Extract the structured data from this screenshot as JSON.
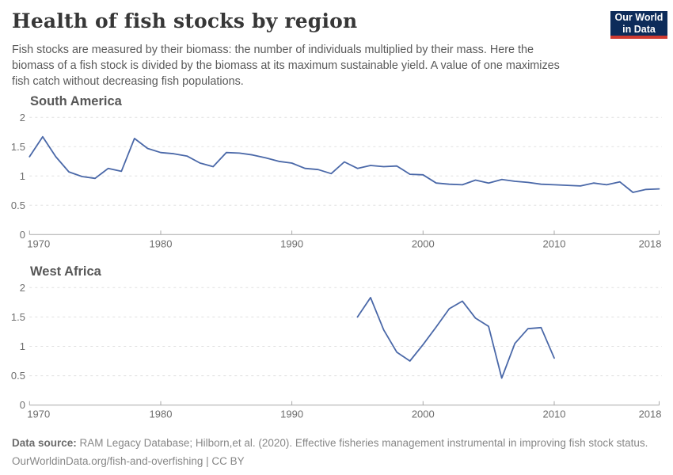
{
  "page_title": "Health of fish stocks by region",
  "subtitle": {
    "lines": [
      "Fish stocks are measured by their biomass: the number of individuals multiplied by their mass. Here the",
      "biomass of a fish stock is divided by the biomass at its maximum sustainable yield. A value of one maximizes",
      "fish catch without decreasing fish populations."
    ]
  },
  "logo": {
    "line1": "Our World",
    "line2": "in Data",
    "bg_color": "#0d2c5a",
    "bar_color": "#d03a30"
  },
  "colors": {
    "line": "#4a68a8",
    "gridline": "#e0e0e0",
    "axis": "#a9a9a9",
    "tick_label": "#6e6e6e"
  },
  "chart_data": [
    {
      "type": "line",
      "title": "South America",
      "xlabel": "",
      "ylabel": "",
      "xlim": [
        1970,
        2018
      ],
      "ylim": [
        0,
        2
      ],
      "xticks": [
        1970,
        1980,
        1990,
        2000,
        2010,
        2018
      ],
      "yticks": [
        0,
        0.5,
        1,
        1.5,
        2
      ],
      "grid": "horizontal-dashed",
      "legend": "none",
      "x": [
        1970,
        1971,
        1972,
        1973,
        1974,
        1975,
        1976,
        1977,
        1978,
        1979,
        1980,
        1981,
        1982,
        1983,
        1984,
        1985,
        1986,
        1987,
        1988,
        1989,
        1990,
        1991,
        1992,
        1993,
        1994,
        1995,
        1996,
        1997,
        1998,
        1999,
        2000,
        2001,
        2002,
        2003,
        2004,
        2005,
        2006,
        2007,
        2008,
        2009,
        2010,
        2011,
        2012,
        2013,
        2014,
        2015,
        2016,
        2017,
        2018
      ],
      "y": [
        1.33,
        1.67,
        1.33,
        1.07,
        0.99,
        0.96,
        1.13,
        1.08,
        1.64,
        1.47,
        1.4,
        1.38,
        1.34,
        1.22,
        1.16,
        1.4,
        1.39,
        1.36,
        1.31,
        1.25,
        1.22,
        1.13,
        1.11,
        1.04,
        1.24,
        1.13,
        1.18,
        1.16,
        1.17,
        1.03,
        1.02,
        0.88,
        0.86,
        0.85,
        0.93,
        0.88,
        0.94,
        0.91,
        0.89,
        0.86,
        0.85,
        0.84,
        0.83,
        0.88,
        0.85,
        0.9,
        0.72,
        0.77,
        0.78
      ]
    },
    {
      "type": "line",
      "title": "West Africa",
      "xlabel": "",
      "ylabel": "",
      "xlim": [
        1970,
        2018
      ],
      "ylim": [
        0,
        2
      ],
      "xticks": [
        1970,
        1980,
        1990,
        2000,
        2010,
        2018
      ],
      "yticks": [
        0,
        0.5,
        1,
        1.5,
        2
      ],
      "grid": "horizontal-dashed",
      "legend": "none",
      "x": [
        1995,
        1996,
        1997,
        1998,
        1999,
        2000,
        2001,
        2002,
        2003,
        2004,
        2005,
        2006,
        2007,
        2008,
        2009,
        2010
      ],
      "y": [
        1.5,
        1.83,
        1.28,
        0.9,
        0.75,
        1.03,
        1.33,
        1.64,
        1.77,
        1.48,
        1.34,
        0.46,
        1.05,
        1.3,
        1.32,
        0.8
      ]
    }
  ],
  "footer": {
    "source_label": "Data source:",
    "source_text": " RAM Legacy Database; Hilborn,et al. (2020). Effective fisheries management instrumental in improving fish stock status.",
    "link_line": "OurWorldinData.org/fish-and-overfishing | CC BY"
  }
}
